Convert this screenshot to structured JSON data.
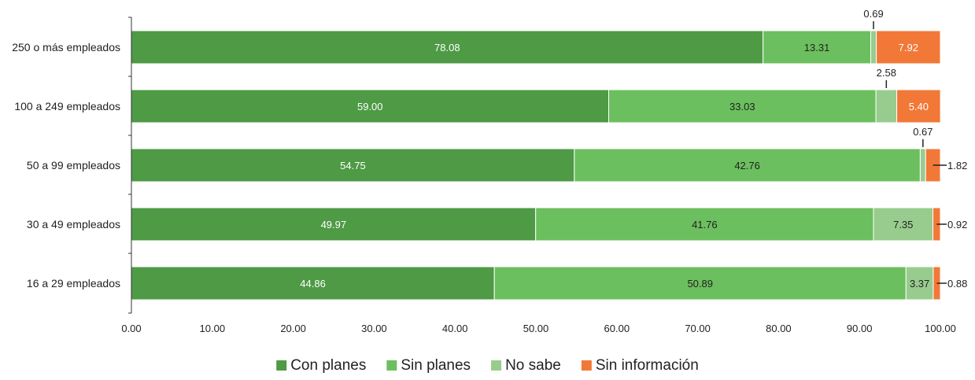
{
  "chart_data": {
    "type": "bar",
    "orientation": "horizontal",
    "stacked": true,
    "title": "",
    "xlabel": "",
    "ylabel": "",
    "xlim": [
      0,
      100
    ],
    "x_ticks": [
      "0.00",
      "10.00",
      "20.00",
      "30.00",
      "40.00",
      "50.00",
      "60.00",
      "70.00",
      "80.00",
      "90.00",
      "100.00"
    ],
    "categories": [
      "250 o más empleados",
      "100 a 249 empleados",
      "50 a 99 empleados",
      "30 a 49 empleados",
      "16 a 29 empleados"
    ],
    "series": [
      {
        "name": "Con planes",
        "color": "#4e9a45",
        "label_color": "#ffffff",
        "values": [
          78.08,
          59.0,
          54.75,
          49.97,
          44.86
        ],
        "labels": [
          "78.08",
          "59.00",
          "54.75",
          "49.97",
          "44.86"
        ]
      },
      {
        "name": "Sin planes",
        "color": "#6cbf5e",
        "label_color": "#222222",
        "values": [
          13.31,
          33.03,
          42.76,
          41.76,
          50.89
        ],
        "labels": [
          "13.31",
          "33.03",
          "42.76",
          "41.76",
          "50.89"
        ]
      },
      {
        "name": "No sabe",
        "color": "#98cc8e",
        "label_color": "#222222",
        "values": [
          0.69,
          2.58,
          0.67,
          7.35,
          3.37
        ],
        "labels": [
          "0.69",
          "2.58",
          "0.67",
          "7.35",
          "3.37"
        ]
      },
      {
        "name": "Sin información",
        "color": "#f27838",
        "label_color": "#ffffff",
        "values": [
          7.92,
          5.4,
          1.82,
          0.92,
          0.88
        ],
        "labels": [
          "7.92",
          "5.40",
          "1.82",
          "0.92",
          "0.88"
        ]
      }
    ],
    "grid": false,
    "legend_position": "bottom"
  }
}
